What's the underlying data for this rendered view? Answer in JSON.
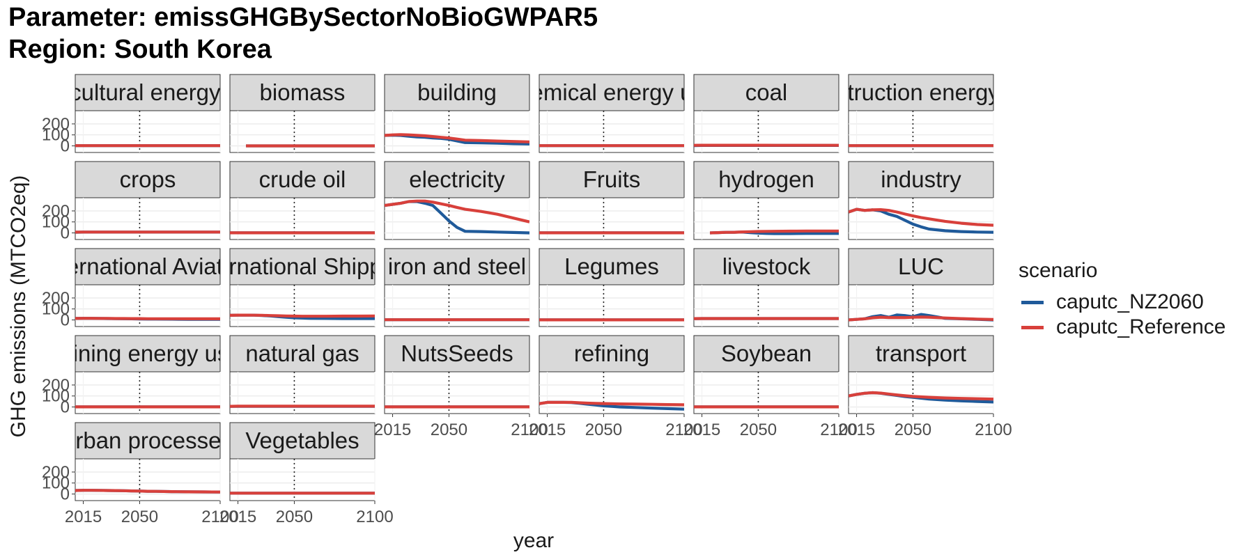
{
  "title": {
    "line1": "Parameter: emissGHGBySectorNoBioGWPAR5",
    "line2": "Region: South Korea"
  },
  "chart_data": {
    "type": "line",
    "xlabel": "year",
    "ylabel": "GHG emissions (MTCO2eq)",
    "x_ticks": [
      2015,
      2050,
      2100
    ],
    "y_ticks": [
      0,
      100,
      200
    ],
    "xlim": [
      2010,
      2100
    ],
    "ylim": [
      -60,
      320
    ],
    "vline_x": 2050,
    "grid": true,
    "legend": {
      "title": "scenario",
      "position": "right",
      "entries": [
        {
          "name": "caputc_NZ2060",
          "color": "#1F5A9A"
        },
        {
          "name": "caputc_Reference",
          "color": "#D8403B"
        }
      ]
    },
    "years": [
      2010,
      2015,
      2020,
      2025,
      2030,
      2035,
      2040,
      2045,
      2050,
      2055,
      2060,
      2070,
      2080,
      2090,
      2100
    ],
    "panels": [
      {
        "name": "agricultural energy use",
        "series": {
          "nz": [
            2,
            2,
            2,
            2,
            2,
            2,
            2,
            2,
            2,
            2,
            2,
            2,
            2,
            2,
            2
          ],
          "ref": [
            2,
            2,
            2,
            2,
            2,
            2,
            2,
            2,
            2,
            2,
            2,
            2,
            2,
            2,
            2
          ]
        }
      },
      {
        "name": "biomass",
        "start": 2020,
        "series": {
          "nz": [
            0,
            0,
            0,
            0,
            0,
            0,
            0,
            0,
            0,
            0,
            0,
            0,
            0,
            0,
            0
          ],
          "ref": [
            0,
            0,
            0,
            0,
            0,
            0,
            0,
            0,
            0,
            0,
            0,
            0,
            0,
            0,
            0
          ]
        }
      },
      {
        "name": "building",
        "series": {
          "nz": [
            95,
            98,
            95,
            88,
            82,
            78,
            72,
            68,
            60,
            45,
            30,
            28,
            24,
            20,
            17
          ],
          "ref": [
            95,
            100,
            102,
            100,
            96,
            92,
            85,
            78,
            72,
            62,
            52,
            48,
            44,
            40,
            36
          ]
        }
      },
      {
        "name": "chemical energy use",
        "series": {
          "nz": [
            2,
            2,
            2,
            2,
            2,
            2,
            2,
            2,
            2,
            2,
            2,
            2,
            2,
            2,
            2
          ],
          "ref": [
            2,
            2,
            2,
            2,
            2,
            2,
            2,
            2,
            2,
            2,
            2,
            2,
            2,
            2,
            2
          ]
        }
      },
      {
        "name": "coal",
        "series": {
          "nz": [
            3,
            4,
            4,
            4,
            4,
            4,
            4,
            4,
            4,
            4,
            4,
            4,
            4,
            4,
            4
          ],
          "ref": [
            5,
            6,
            6,
            6,
            6,
            6,
            6,
            6,
            6,
            6,
            5,
            5,
            5,
            5,
            5
          ]
        }
      },
      {
        "name": "construction energy use",
        "series": {
          "nz": [
            2,
            2,
            2,
            2,
            2,
            2,
            2,
            2,
            2,
            2,
            2,
            2,
            2,
            2,
            2
          ],
          "ref": [
            2,
            2,
            2,
            2,
            2,
            2,
            2,
            2,
            2,
            2,
            2,
            2,
            2,
            2,
            2
          ]
        }
      },
      {
        "name": "crops",
        "series": {
          "nz": [
            6,
            7,
            7,
            7,
            7,
            7,
            7,
            7,
            7,
            7,
            7,
            7,
            7,
            7,
            7
          ],
          "ref": [
            7,
            8,
            8,
            8,
            8,
            8,
            8,
            8,
            8,
            8,
            8,
            8,
            8,
            8,
            8
          ]
        }
      },
      {
        "name": "crude oil",
        "series": {
          "nz": [
            1,
            1,
            1,
            1,
            1,
            1,
            1,
            1,
            1,
            1,
            1,
            1,
            1,
            1,
            1
          ],
          "ref": [
            1,
            1,
            1,
            1,
            1,
            1,
            1,
            1,
            1,
            1,
            1,
            1,
            1,
            1,
            1
          ]
        }
      },
      {
        "name": "electricity",
        "series": {
          "nz": [
            250,
            260,
            270,
            285,
            285,
            270,
            250,
            180,
            110,
            50,
            15,
            12,
            8,
            4,
            0
          ],
          "ref": [
            250,
            260,
            270,
            285,
            290,
            290,
            280,
            265,
            250,
            232,
            215,
            195,
            170,
            135,
            100
          ]
        }
      },
      {
        "name": "Fruits",
        "series": {
          "nz": [
            1,
            1,
            1,
            1,
            1,
            1,
            1,
            1,
            1,
            1,
            1,
            1,
            1,
            1,
            1
          ],
          "ref": [
            1,
            1,
            1,
            1,
            1,
            1,
            1,
            1,
            1,
            1,
            1,
            1,
            1,
            1,
            1
          ]
        }
      },
      {
        "name": "hydrogen",
        "start": 2020,
        "series": {
          "nz": [
            0,
            0,
            0,
            3,
            5,
            6,
            8,
            3,
            -2,
            -5,
            -6,
            -6,
            -5,
            -5,
            -5
          ],
          "ref": [
            0,
            0,
            0,
            3,
            5,
            6,
            9,
            11,
            13,
            14,
            15,
            16,
            17,
            17,
            17
          ]
        }
      },
      {
        "name": "industry",
        "series": {
          "nz": [
            190,
            215,
            205,
            210,
            200,
            170,
            150,
            115,
            80,
            55,
            35,
            20,
            12,
            8,
            6
          ],
          "ref": [
            190,
            215,
            205,
            210,
            212,
            205,
            190,
            172,
            155,
            140,
            128,
            105,
            88,
            76,
            70
          ]
        }
      },
      {
        "name": "international Aviation",
        "series": {
          "nz": [
            14,
            15,
            15,
            14,
            13,
            12,
            11,
            10,
            9,
            8,
            8,
            7,
            6,
            6,
            5
          ],
          "ref": [
            14,
            15,
            15,
            14,
            14,
            13,
            13,
            12,
            12,
            11,
            11,
            11,
            10,
            10,
            10
          ]
        }
      },
      {
        "name": "international Shipping",
        "series": {
          "nz": [
            42,
            44,
            44,
            43,
            40,
            36,
            30,
            25,
            20,
            17,
            15,
            14,
            13,
            13,
            13
          ],
          "ref": [
            42,
            44,
            44,
            43,
            42,
            40,
            38,
            36,
            35,
            34,
            34,
            34,
            35,
            35,
            36
          ]
        }
      },
      {
        "name": "iron and steel",
        "series": {
          "nz": [
            2,
            2,
            2,
            2,
            2,
            2,
            2,
            2,
            2,
            2,
            2,
            2,
            2,
            2,
            2
          ],
          "ref": [
            2,
            2,
            2,
            2,
            2,
            2,
            2,
            2,
            2,
            2,
            2,
            2,
            2,
            2,
            2
          ]
        }
      },
      {
        "name": "Legumes",
        "series": {
          "nz": [
            1,
            1,
            1,
            1,
            1,
            1,
            1,
            1,
            1,
            1,
            1,
            1,
            1,
            1,
            1
          ],
          "ref": [
            1,
            1,
            1,
            1,
            1,
            1,
            1,
            1,
            1,
            1,
            1,
            1,
            1,
            1,
            1
          ]
        }
      },
      {
        "name": "livestock",
        "series": {
          "nz": [
            12,
            13,
            13,
            13,
            13,
            13,
            13,
            13,
            13,
            13,
            13,
            13,
            13,
            13,
            13
          ],
          "ref": [
            12,
            13,
            13,
            13,
            13,
            13,
            13,
            13,
            13,
            13,
            13,
            13,
            13,
            13,
            13
          ]
        }
      },
      {
        "name": "LUC",
        "series": {
          "nz": [
            0,
            5,
            10,
            30,
            40,
            25,
            45,
            40,
            30,
            50,
            40,
            15,
            10,
            5,
            0
          ],
          "ref": [
            0,
            5,
            10,
            20,
            25,
            22,
            22,
            22,
            24,
            26,
            25,
            18,
            12,
            8,
            4
          ]
        }
      },
      {
        "name": "mining energy use",
        "series": {
          "nz": [
            1,
            1,
            1,
            1,
            1,
            1,
            1,
            1,
            1,
            1,
            1,
            1,
            1,
            1,
            1
          ],
          "ref": [
            1,
            1,
            1,
            1,
            1,
            1,
            1,
            1,
            1,
            1,
            1,
            1,
            1,
            1,
            1
          ]
        }
      },
      {
        "name": "natural gas",
        "series": {
          "nz": [
            5,
            6,
            6,
            6,
            6,
            6,
            6,
            6,
            6,
            6,
            5,
            5,
            5,
            5,
            5
          ],
          "ref": [
            6,
            7,
            7,
            7,
            7,
            7,
            7,
            7,
            7,
            7,
            7,
            7,
            7,
            7,
            7
          ]
        }
      },
      {
        "name": "NutsSeeds",
        "series": {
          "nz": [
            1,
            1,
            1,
            1,
            1,
            1,
            1,
            1,
            1,
            1,
            1,
            1,
            1,
            1,
            1
          ],
          "ref": [
            1,
            1,
            1,
            1,
            1,
            1,
            1,
            1,
            1,
            1,
            1,
            1,
            1,
            1,
            1
          ]
        }
      },
      {
        "name": "refining",
        "series": {
          "nz": [
            30,
            42,
            42,
            42,
            40,
            33,
            25,
            18,
            10,
            5,
            0,
            -5,
            -10,
            -15,
            -20
          ],
          "ref": [
            30,
            42,
            42,
            42,
            42,
            38,
            35,
            33,
            31,
            30,
            28,
            26,
            24,
            22,
            20
          ]
        }
      },
      {
        "name": "Soybean",
        "series": {
          "nz": [
            1,
            1,
            1,
            1,
            1,
            1,
            1,
            1,
            1,
            1,
            1,
            1,
            1,
            1,
            1
          ],
          "ref": [
            1,
            1,
            1,
            1,
            1,
            1,
            1,
            1,
            1,
            1,
            1,
            1,
            1,
            1,
            1
          ]
        }
      },
      {
        "name": "transport",
        "series": {
          "nz": [
            100,
            115,
            125,
            130,
            125,
            115,
            105,
            95,
            88,
            80,
            72,
            62,
            55,
            50,
            45
          ],
          "ref": [
            100,
            115,
            125,
            130,
            126,
            118,
            110,
            102,
            96,
            92,
            88,
            82,
            78,
            75,
            72
          ]
        }
      },
      {
        "name": "urban processes",
        "series": {
          "nz": [
            32,
            34,
            34,
            33,
            32,
            31,
            30,
            28,
            27,
            25,
            24,
            22,
            20,
            19,
            18
          ],
          "ref": [
            32,
            34,
            34,
            33,
            32,
            31,
            30,
            28,
            27,
            25,
            24,
            22,
            20,
            19,
            18
          ]
        }
      },
      {
        "name": "Vegetables",
        "series": {
          "nz": [
            8,
            8,
            8,
            8,
            8,
            8,
            8,
            8,
            8,
            8,
            8,
            8,
            8,
            8,
            8
          ],
          "ref": [
            8,
            8,
            8,
            8,
            8,
            8,
            8,
            8,
            8,
            8,
            8,
            8,
            8,
            8,
            8
          ]
        }
      }
    ]
  }
}
